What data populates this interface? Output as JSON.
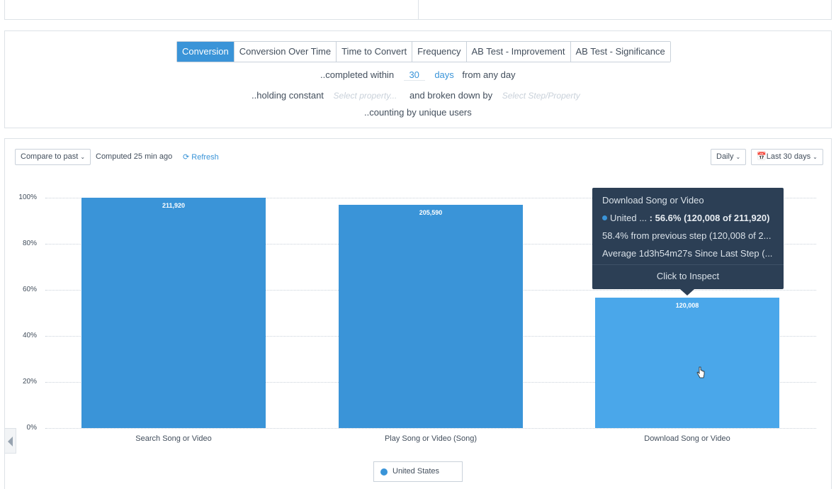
{
  "tabs": [
    "Conversion",
    "Conversion Over Time",
    "Time to Convert",
    "Frequency",
    "AB Test - Improvement",
    "AB Test - Significance"
  ],
  "active_tab": "Conversion",
  "settings": {
    "completed_within": "..completed within",
    "days_value": "30",
    "days_unit": "days",
    "from_any_day": "from any day",
    "holding_constant": "..holding constant",
    "holding_placeholder": "Select property...",
    "broken_down_by": "and broken down by",
    "breakdown_placeholder": "Select Step/Property",
    "counting_by": "..counting by unique users"
  },
  "toolbar": {
    "compare_label": "Compare to past",
    "computed_text": "Computed 25 min ago",
    "refresh_label": "Refresh",
    "interval_label": "Daily",
    "range_label": "Last 30 days"
  },
  "colors": {
    "accent": "#3a94d8",
    "bar_default": "#3a94d8",
    "bar_hover": "#4aa7ea",
    "tooltip_bg": "#2c3f55"
  },
  "chart_data": {
    "type": "bar",
    "categories": [
      "Search Song or Video",
      "Play Song or Video (Song)",
      "Download Song or Video"
    ],
    "series": [
      {
        "name": "United States",
        "values": [
          211920,
          205590,
          120008
        ],
        "labels": [
          "211,920",
          "205,590",
          "120,008"
        ],
        "percent": [
          100,
          97.0,
          56.6
        ]
      }
    ],
    "y_ticks": [
      "100%",
      "80%",
      "60%",
      "40%",
      "20%",
      "0%"
    ],
    "ylim": [
      0,
      100
    ],
    "grid": true,
    "legend": "bottom-center"
  },
  "tooltip": {
    "title": "Download Song or Video",
    "series_name": "United ...",
    "series_value": ": 56.6% (120,008 of 211,920)",
    "from_previous": "58.4% from previous step (120,008 of 2...",
    "average": "Average 1d3h54m27s Since Last Step (...",
    "action": "Click to Inspect"
  },
  "legend": {
    "label": "United States"
  }
}
